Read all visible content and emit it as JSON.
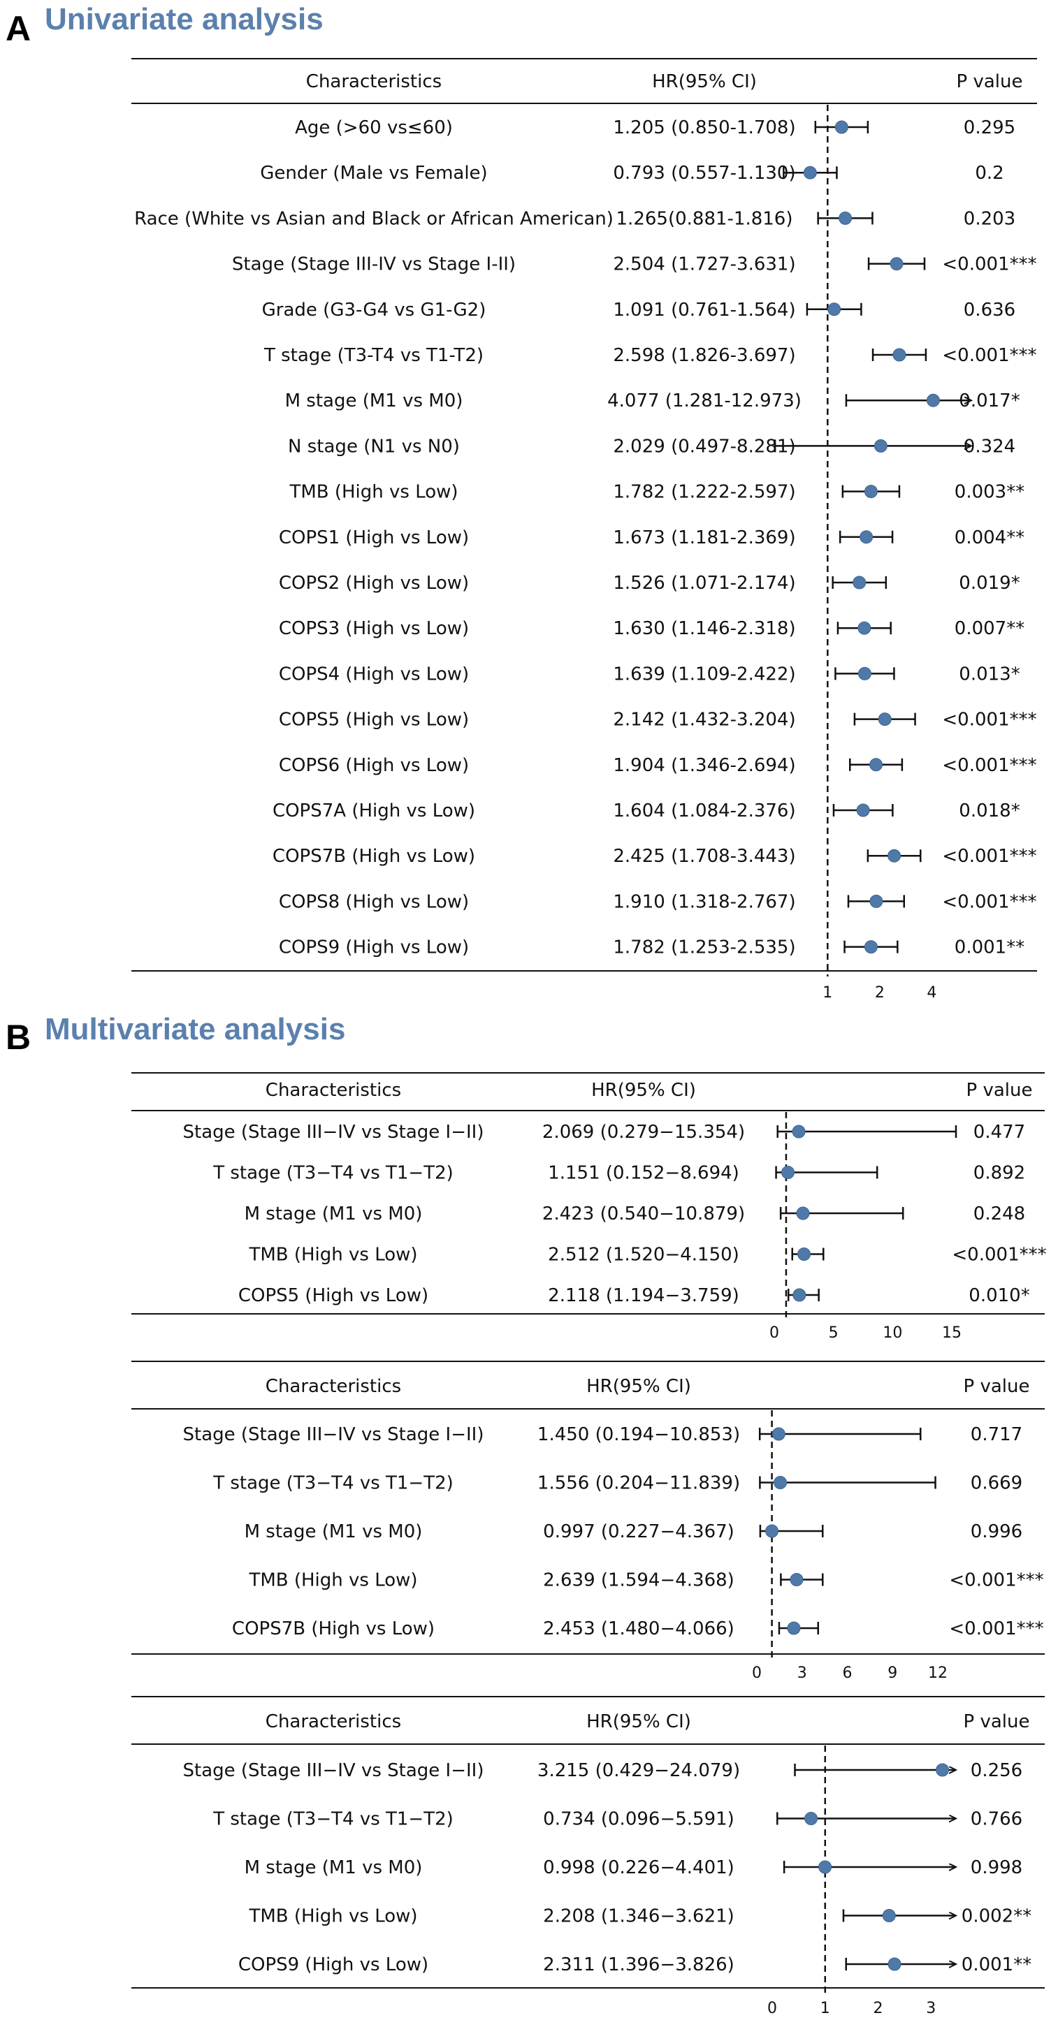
{
  "colors": {
    "accent": "#5b80ad",
    "point": "#4f79a8",
    "ink": "#111111"
  },
  "panels": [
    {
      "letter": "A",
      "title": "Univariate analysis"
    },
    {
      "letter": "B",
      "title": "Multivariate analysis"
    }
  ],
  "chart_data": [
    {
      "type": "forest",
      "panel": "A",
      "headers": {
        "characteristics": "Characteristics",
        "hr": "HR(95% CI)",
        "p": "P value"
      },
      "scale": "log",
      "reference": 1,
      "ticks": [
        1,
        2,
        4
      ],
      "xlim": [
        0.55,
        6.0
      ],
      "rows": [
        {
          "label": "Age (>60 vs≤60)",
          "hr_text": "1.205 (0.850-1.708)",
          "p": "0.295",
          "hr": 1.205,
          "lo": 0.85,
          "hi": 1.708
        },
        {
          "label": "Gender (Male vs Female)",
          "hr_text": "0.793 (0.557-1.130)",
          "p": "0.2",
          "hr": 0.793,
          "lo": 0.557,
          "hi": 1.13
        },
        {
          "label": "Race (White vs Asian and Black or African American)",
          "hr_text": "1.265(0.881-1.816)",
          "p": "0.203",
          "hr": 1.265,
          "lo": 0.881,
          "hi": 1.816
        },
        {
          "label": "Stage (Stage III-IV vs Stage I-II)",
          "hr_text": "2.504 (1.727-3.631)",
          "p": "<0.001***",
          "hr": 2.504,
          "lo": 1.727,
          "hi": 3.631
        },
        {
          "label": "Grade (G3-G4 vs G1-G2)",
          "hr_text": "1.091 (0.761-1.564)",
          "p": "0.636",
          "hr": 1.091,
          "lo": 0.761,
          "hi": 1.564
        },
        {
          "label": "T stage (T3-T4 vs T1-T2)",
          "hr_text": "2.598 (1.826-3.697)",
          "p": "<0.001***",
          "hr": 2.598,
          "lo": 1.826,
          "hi": 3.697
        },
        {
          "label": "M stage (M1 vs M0)",
          "hr_text": "4.077 (1.281-12.973)",
          "p": "0.017*",
          "hr": 4.077,
          "lo": 1.281,
          "hi": 12.973
        },
        {
          "label": "N stage (N1 vs N0)",
          "hr_text": "2.029 (0.497-8.281)",
          "p": "0.324",
          "hr": 2.029,
          "lo": 0.497,
          "hi": 8.281
        },
        {
          "label": "TMB (High vs Low)",
          "hr_text": "1.782 (1.222-2.597)",
          "p": "0.003**",
          "hr": 1.782,
          "lo": 1.222,
          "hi": 2.597
        },
        {
          "label": "COPS1 (High vs Low)",
          "hr_text": "1.673 (1.181-2.369)",
          "p": "0.004**",
          "hr": 1.673,
          "lo": 1.181,
          "hi": 2.369
        },
        {
          "label": "COPS2 (High vs Low)",
          "hr_text": "1.526 (1.071-2.174)",
          "p": "0.019*",
          "hr": 1.526,
          "lo": 1.071,
          "hi": 2.174
        },
        {
          "label": "COPS3 (High vs Low)",
          "hr_text": "1.630 (1.146-2.318)",
          "p": "0.007**",
          "hr": 1.63,
          "lo": 1.146,
          "hi": 2.318
        },
        {
          "label": "COPS4 (High vs Low)",
          "hr_text": "1.639 (1.109-2.422)",
          "p": "0.013*",
          "hr": 1.639,
          "lo": 1.109,
          "hi": 2.422
        },
        {
          "label": "COPS5 (High vs Low)",
          "hr_text": "2.142 (1.432-3.204)",
          "p": "<0.001***",
          "hr": 2.142,
          "lo": 1.432,
          "hi": 3.204
        },
        {
          "label": "COPS6 (High vs Low)",
          "hr_text": "1.904 (1.346-2.694)",
          "p": "<0.001***",
          "hr": 1.904,
          "lo": 1.346,
          "hi": 2.694
        },
        {
          "label": "COPS7A (High vs Low)",
          "hr_text": "1.604 (1.084-2.376)",
          "p": "0.018*",
          "hr": 1.604,
          "lo": 1.084,
          "hi": 2.376
        },
        {
          "label": "COPS7B (High vs Low)",
          "hr_text": "2.425 (1.708-3.443)",
          "p": "<0.001***",
          "hr": 2.425,
          "lo": 1.708,
          "hi": 3.443
        },
        {
          "label": "COPS8 (High vs Low)",
          "hr_text": "1.910 (1.318-2.767)",
          "p": "<0.001***",
          "hr": 1.91,
          "lo": 1.318,
          "hi": 2.767
        },
        {
          "label": "COPS9 (High vs Low)",
          "hr_text": "1.782 (1.253-2.535)",
          "p": "0.001**",
          "hr": 1.782,
          "lo": 1.253,
          "hi": 2.535
        }
      ]
    },
    {
      "type": "forest",
      "panel": "B",
      "headers": {
        "characteristics": "Characteristics",
        "hr": "HR(95% CI)",
        "p": "P value"
      },
      "scale": "linear",
      "reference": 1,
      "ticks": [
        0,
        5,
        10,
        15
      ],
      "xlim": [
        0,
        15
      ],
      "rows": [
        {
          "label": "Stage (Stage III−IV vs Stage I−II)",
          "hr_text": "2.069 (0.279−15.354)",
          "p": "0.477",
          "hr": 2.069,
          "lo": 0.279,
          "hi": 15.354
        },
        {
          "label": "T stage (T3−T4 vs T1−T2)",
          "hr_text": "1.151 (0.152−8.694)",
          "p": "0.892",
          "hr": 1.151,
          "lo": 0.152,
          "hi": 8.694
        },
        {
          "label": "M stage (M1 vs M0)",
          "hr_text": "2.423 (0.540−10.879)",
          "p": "0.248",
          "hr": 2.423,
          "lo": 0.54,
          "hi": 10.879
        },
        {
          "label": "TMB (High vs Low)",
          "hr_text": "2.512 (1.520−4.150)",
          "p": "<0.001***",
          "hr": 2.512,
          "lo": 1.52,
          "hi": 4.15
        },
        {
          "label": "COPS5 (High vs Low)",
          "hr_text": "2.118 (1.194−3.759)",
          "p": "0.010*",
          "hr": 2.118,
          "lo": 1.194,
          "hi": 3.759
        }
      ]
    },
    {
      "type": "forest",
      "panel": "B",
      "headers": {
        "characteristics": "Characteristics",
        "hr": "HR(95% CI)",
        "p": "P value"
      },
      "scale": "linear",
      "reference": 1,
      "ticks": [
        0,
        3,
        6,
        9,
        12
      ],
      "xlim": [
        0,
        12
      ],
      "rows": [
        {
          "label": "Stage (Stage III−IV vs Stage I−II)",
          "hr_text": "1.450 (0.194−10.853)",
          "p": "0.717",
          "hr": 1.45,
          "lo": 0.194,
          "hi": 10.853
        },
        {
          "label": "T stage (T3−T4 vs T1−T2)",
          "hr_text": "1.556 (0.204−11.839)",
          "p": "0.669",
          "hr": 1.556,
          "lo": 0.204,
          "hi": 11.839
        },
        {
          "label": "M stage (M1 vs M0)",
          "hr_text": "0.997 (0.227−4.367)",
          "p": "0.996",
          "hr": 0.997,
          "lo": 0.227,
          "hi": 4.367
        },
        {
          "label": "TMB (High vs Low)",
          "hr_text": "2.639 (1.594−4.368)",
          "p": "<0.001***",
          "hr": 2.639,
          "lo": 1.594,
          "hi": 4.368
        },
        {
          "label": "COPS7B (High vs Low)",
          "hr_text": "2.453 (1.480−4.066)",
          "p": "<0.001***",
          "hr": 2.453,
          "lo": 1.48,
          "hi": 4.066
        }
      ]
    },
    {
      "type": "forest",
      "panel": "B",
      "headers": {
        "characteristics": "Characteristics",
        "hr": "HR(95% CI)",
        "p": "P value"
      },
      "scale": "linear",
      "reference": 1,
      "ticks": [
        0,
        1,
        2,
        3
      ],
      "xlim": [
        0,
        3.3
      ],
      "rows": [
        {
          "label": "Stage (Stage III−IV vs Stage I−II)",
          "hr_text": "3.215 (0.429−24.079)",
          "p": "0.256",
          "hr": 3.215,
          "lo": 0.429,
          "hi": 24.079
        },
        {
          "label": "T stage (T3−T4 vs T1−T2)",
          "hr_text": "0.734 (0.096−5.591)",
          "p": "0.766",
          "hr": 0.734,
          "lo": 0.096,
          "hi": 5.591
        },
        {
          "label": "M stage (M1 vs M0)",
          "hr_text": "0.998 (0.226−4.401)",
          "p": "0.998",
          "hr": 0.998,
          "lo": 0.226,
          "hi": 4.401
        },
        {
          "label": "TMB (High vs Low)",
          "hr_text": "2.208 (1.346−3.621)",
          "p": "0.002**",
          "hr": 2.208,
          "lo": 1.346,
          "hi": 3.621
        },
        {
          "label": "COPS9 (High vs Low)",
          "hr_text": "2.311 (1.396−3.826)",
          "p": "0.001**",
          "hr": 2.311,
          "lo": 1.396,
          "hi": 3.826
        }
      ]
    }
  ]
}
